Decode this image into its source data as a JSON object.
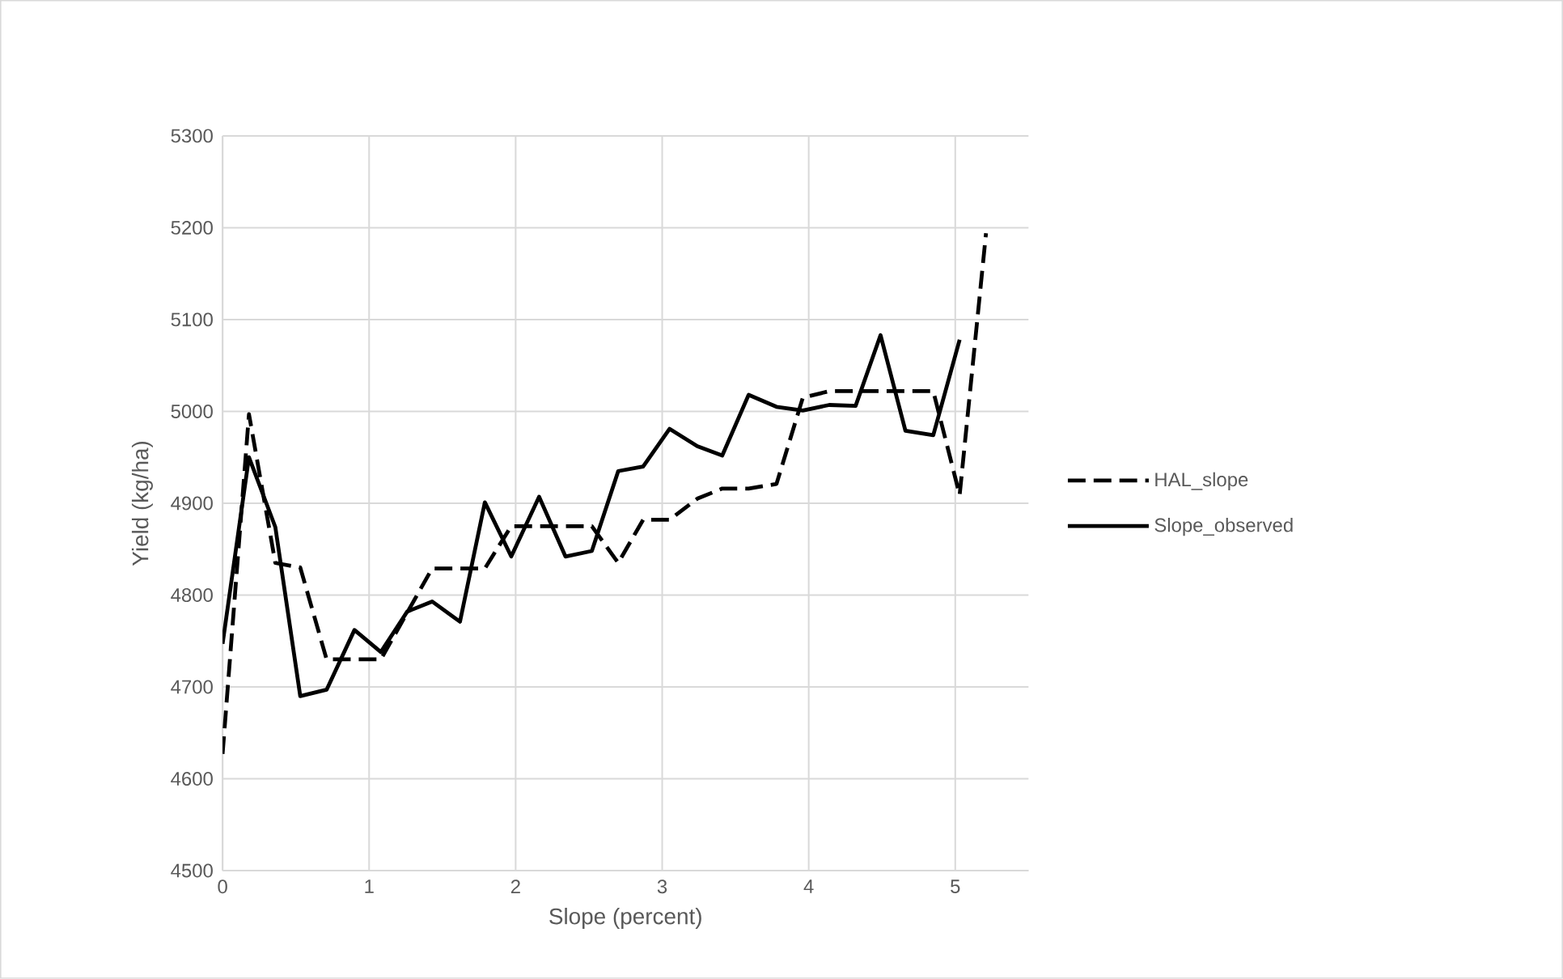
{
  "chart_data": {
    "type": "line",
    "xlabel": "Slope (percent)",
    "ylabel": "Yield (kg/ha)",
    "xlim": [
      0,
      5.5
    ],
    "ylim": [
      4500,
      5300
    ],
    "xticks": [
      0,
      1,
      2,
      3,
      4,
      5
    ],
    "yticks": [
      4500,
      4600,
      4700,
      4800,
      4900,
      5000,
      5100,
      5200,
      5300
    ],
    "grid": true,
    "legend": "right",
    "marker": "none",
    "series": [
      {
        "name": "HAL_slope",
        "color": "#000000",
        "line_style": "dashed",
        "x": [
          0,
          0.18,
          0.36,
          0.53,
          0.71,
          0.9,
          1.08,
          1.43,
          1.62,
          1.79,
          1.97,
          2.16,
          2.34,
          2.52,
          2.7,
          2.87,
          3.05,
          3.24,
          3.41,
          3.59,
          3.78,
          3.96,
          4.14,
          4.32,
          4.49,
          4.66,
          4.85,
          5.03,
          5.21
        ],
        "values": [
          4627,
          4997,
          4835,
          4830,
          4730,
          4730,
          4730,
          4829,
          4829,
          4829,
          4875,
          4875,
          4875,
          4875,
          4835,
          4882,
          4882,
          4905,
          4916,
          4916,
          4921,
          5015,
          5022,
          5022,
          5022,
          5022,
          5022,
          4909,
          5194
        ]
      },
      {
        "name": "Slope_observed",
        "color": "#000000",
        "line_style": "solid",
        "x": [
          0,
          0.18,
          0.36,
          0.53,
          0.71,
          0.9,
          1.08,
          1.26,
          1.43,
          1.62,
          1.79,
          1.97,
          2.16,
          2.34,
          2.52,
          2.7,
          2.87,
          3.05,
          3.24,
          3.41,
          3.59,
          3.78,
          3.96,
          4.14,
          4.32,
          4.49,
          4.66,
          4.85,
          5.03
        ],
        "values": [
          4747,
          4950,
          4874,
          4690,
          4697,
          4762,
          4738,
          4782,
          4793,
          4771,
          4901,
          4842,
          4907,
          4842,
          4848,
          4935,
          4940,
          4981,
          4962,
          4952,
          5018,
          5005,
          5001,
          5007,
          5006,
          5083,
          4979,
          4974,
          5078
        ]
      }
    ]
  }
}
